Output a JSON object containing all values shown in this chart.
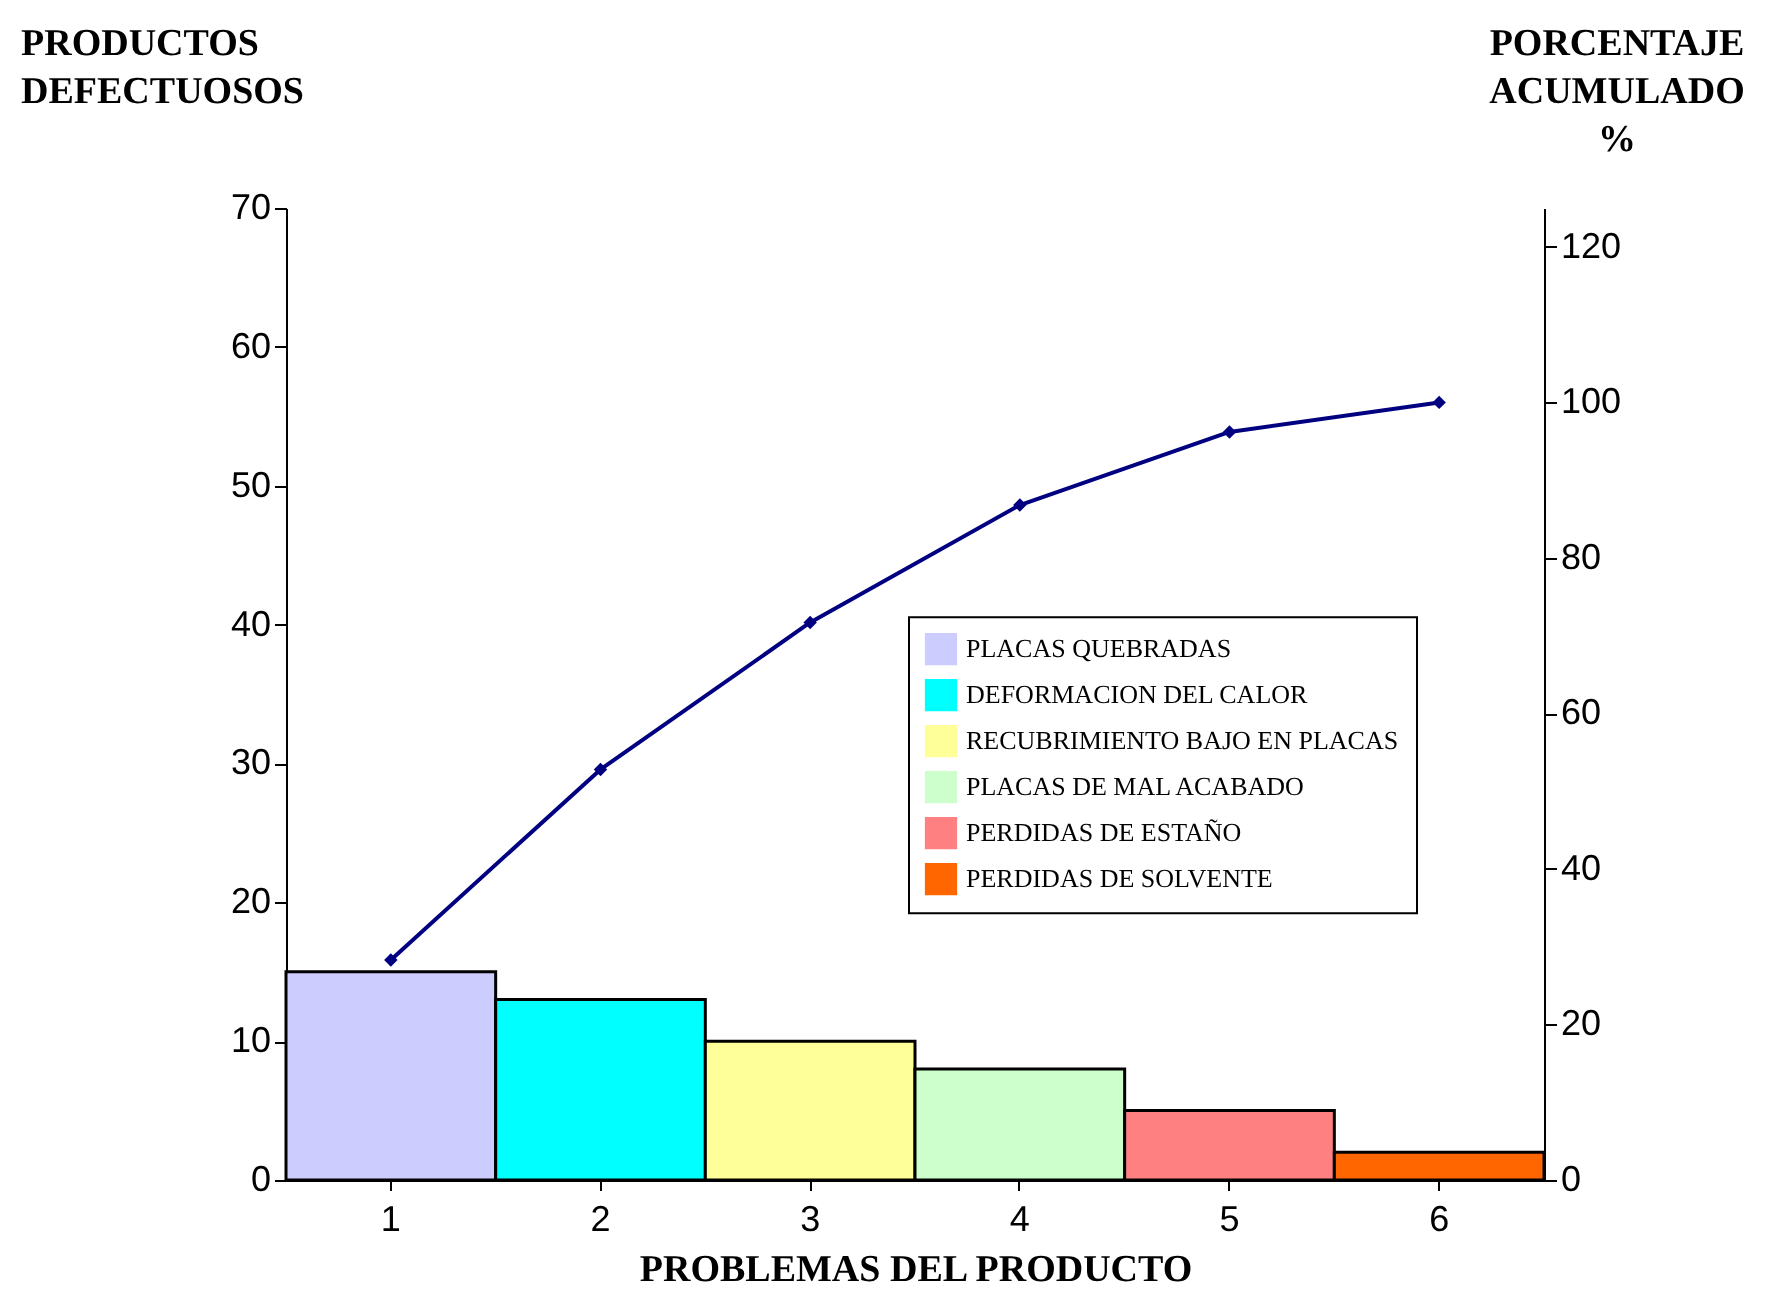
{
  "chart_data": {
    "type": "bar",
    "xlabel": "PROBLEMAS DEL PRODUCTO",
    "ylabel": "PRODUCTOS DEFECTUOSOS",
    "y2label": "PORCENTAJE ACUMULADO %",
    "categories": [
      "1",
      "2",
      "3",
      "4",
      "5",
      "6"
    ],
    "series": [
      {
        "name": "PLACAS QUEBRADAS",
        "color": "#ccccff",
        "values": [
          15,
          null,
          null,
          null,
          null,
          null
        ]
      },
      {
        "name": "DEFORMACION DEL CALOR",
        "color": "#00ffff",
        "values": [
          null,
          13,
          null,
          null,
          null,
          null
        ]
      },
      {
        "name": "RECUBRIMIENTO BAJO EN PLACAS",
        "color": "#ffff99",
        "values": [
          null,
          null,
          10,
          null,
          null,
          null
        ]
      },
      {
        "name": "PLACAS DE MAL ACABADO",
        "color": "#ccffcc",
        "values": [
          null,
          null,
          null,
          8,
          null,
          null
        ]
      },
      {
        "name": "PERDIDAS DE ESTAÑO",
        "color": "#ff8080",
        "values": [
          null,
          null,
          null,
          null,
          5,
          null
        ]
      },
      {
        "name": "PERDIDAS DE SOLVENTE",
        "color": "#ff6600",
        "values": [
          null,
          null,
          null,
          null,
          null,
          2
        ]
      },
      {
        "type": "line",
        "axis": "y2",
        "color": "#000080",
        "values": [
          28.3,
          52.8,
          71.7,
          86.8,
          96.2,
          100
        ]
      }
    ],
    "ylim": [
      0,
      70
    ],
    "yticks": [
      0,
      10,
      20,
      30,
      40,
      50,
      60,
      70
    ],
    "y2lim": [
      0,
      125
    ],
    "y2ticks": [
      0,
      20,
      40,
      60,
      80,
      100,
      120
    ],
    "legend": "right",
    "marker": "diamond",
    "grid": false
  }
}
